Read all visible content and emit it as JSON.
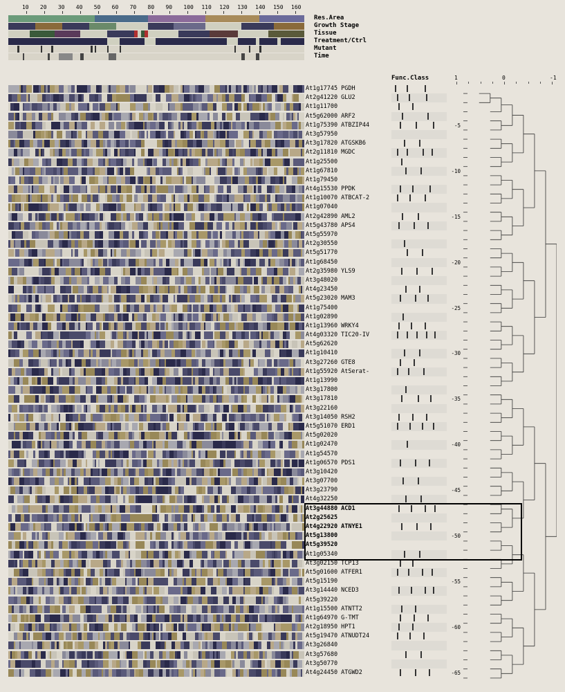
{
  "axis": {
    "ticks": [
      10,
      20,
      30,
      40,
      50,
      60,
      70,
      80,
      90,
      100,
      110,
      120,
      130,
      140,
      150,
      160
    ],
    "max": 165
  },
  "annotation_tracks": [
    {
      "label": "Res.Area",
      "segments": [
        {
          "start": 0,
          "end": 48,
          "color": "#6b9b7a"
        },
        {
          "start": 48,
          "end": 78,
          "color": "#4a6b8a"
        },
        {
          "start": 78,
          "end": 110,
          "color": "#8b6b9a"
        },
        {
          "start": 110,
          "end": 140,
          "color": "#a88b5a"
        },
        {
          "start": 140,
          "end": 165,
          "color": "#6b6b9b"
        }
      ]
    },
    {
      "label": "Growth Stage",
      "segments": [
        {
          "start": 0,
          "end": 15,
          "color": "#3a3a5a"
        },
        {
          "start": 15,
          "end": 30,
          "color": "#8a6a3a"
        },
        {
          "start": 30,
          "end": 45,
          "color": "#3a3a5a"
        },
        {
          "start": 45,
          "end": 60,
          "color": "#6a8a6a"
        },
        {
          "start": 60,
          "end": 78,
          "color": "#d0d0c0"
        },
        {
          "start": 78,
          "end": 92,
          "color": "#3a3a5a"
        },
        {
          "start": 92,
          "end": 110,
          "color": "#6a6a8a"
        },
        {
          "start": 110,
          "end": 130,
          "color": "#d0d0c0"
        },
        {
          "start": 130,
          "end": 148,
          "color": "#3a3a5a"
        },
        {
          "start": 148,
          "end": 165,
          "color": "#8a6a3a"
        }
      ]
    },
    {
      "label": "Tissue",
      "segments": [
        {
          "start": 0,
          "end": 12,
          "color": "#d0d0c0"
        },
        {
          "start": 12,
          "end": 26,
          "color": "#3a5a3a"
        },
        {
          "start": 26,
          "end": 40,
          "color": "#5a3a5a"
        },
        {
          "start": 40,
          "end": 55,
          "color": "#d0d0c0"
        },
        {
          "start": 55,
          "end": 70,
          "color": "#3a3a5a"
        },
        {
          "start": 70,
          "end": 72,
          "color": "#b03030"
        },
        {
          "start": 72,
          "end": 74,
          "color": "#d0d0c0"
        },
        {
          "start": 74,
          "end": 76,
          "color": "#3a5a3a"
        },
        {
          "start": 76,
          "end": 78,
          "color": "#b03030"
        },
        {
          "start": 78,
          "end": 95,
          "color": "#d0d0c0"
        },
        {
          "start": 95,
          "end": 112,
          "color": "#3a3a5a"
        },
        {
          "start": 112,
          "end": 128,
          "color": "#5a3a3a"
        },
        {
          "start": 128,
          "end": 145,
          "color": "#d0d0c0"
        },
        {
          "start": 145,
          "end": 165,
          "color": "#5a5a3a"
        }
      ]
    },
    {
      "label": "Treatment/Ctrl",
      "segments": [
        {
          "start": 0,
          "end": 55,
          "color": "#2a2a4a"
        },
        {
          "start": 55,
          "end": 62,
          "color": "#d0d0c0"
        },
        {
          "start": 62,
          "end": 76,
          "color": "#2a2a4a"
        },
        {
          "start": 76,
          "end": 82,
          "color": "#d0d0c0"
        },
        {
          "start": 82,
          "end": 122,
          "color": "#2a2a4a"
        },
        {
          "start": 122,
          "end": 128,
          "color": "#d0d0c0"
        },
        {
          "start": 128,
          "end": 138,
          "color": "#2a2a4a"
        },
        {
          "start": 138,
          "end": 140,
          "color": "#d0d0c0"
        },
        {
          "start": 140,
          "end": 150,
          "color": "#2a2a4a"
        },
        {
          "start": 150,
          "end": 152,
          "color": "#d0d0c0"
        },
        {
          "start": 152,
          "end": 165,
          "color": "#2a2a4a"
        }
      ]
    },
    {
      "label": "Mutant",
      "segments": [
        {
          "start": 0,
          "end": 165,
          "color": "#d8d4c8"
        },
        {
          "start": 5,
          "end": 6,
          "color": "#333"
        },
        {
          "start": 18,
          "end": 19,
          "color": "#333"
        },
        {
          "start": 24,
          "end": 25,
          "color": "#333"
        },
        {
          "start": 46,
          "end": 47,
          "color": "#333"
        },
        {
          "start": 48,
          "end": 49,
          "color": "#333"
        },
        {
          "start": 55,
          "end": 56,
          "color": "#333"
        },
        {
          "start": 62,
          "end": 63,
          "color": "#333"
        },
        {
          "start": 126,
          "end": 127,
          "color": "#333"
        },
        {
          "start": 134,
          "end": 135,
          "color": "#333"
        },
        {
          "start": 140,
          "end": 141,
          "color": "#333"
        }
      ]
    },
    {
      "label": "Time",
      "segments": [
        {
          "start": 0,
          "end": 165,
          "color": "#d8d4c8"
        },
        {
          "start": 8,
          "end": 9,
          "color": "#444"
        },
        {
          "start": 22,
          "end": 23,
          "color": "#444"
        },
        {
          "start": 28,
          "end": 36,
          "color": "#888"
        },
        {
          "start": 40,
          "end": 42,
          "color": "#444"
        },
        {
          "start": 56,
          "end": 60,
          "color": "#666"
        },
        {
          "start": 130,
          "end": 132,
          "color": "#444"
        },
        {
          "start": 138,
          "end": 140,
          "color": "#444"
        }
      ]
    }
  ],
  "func_class_label": "Func.Class",
  "corr_scale": {
    "ticks": [
      1,
      0,
      -1
    ]
  },
  "genes": [
    {
      "id": "At1g17745",
      "name": "PGDH",
      "func": [
        5,
        22,
        48
      ]
    },
    {
      "id": "At2g41220",
      "name": "GLU2",
      "func": [
        8,
        25,
        50
      ]
    },
    {
      "id": "At1g11700",
      "name": "",
      "func": [
        10,
        30
      ]
    },
    {
      "id": "At5g62000",
      "name": "ARF2",
      "func": [
        15,
        52
      ]
    },
    {
      "id": "At1g75390",
      "name": "ATBZIP44",
      "func": [
        12,
        35,
        60
      ],
      "idx": 5
    },
    {
      "id": "At3g57950",
      "name": "",
      "func": []
    },
    {
      "id": "At3g17820",
      "name": "ATGSKB6",
      "func": [
        18,
        40
      ]
    },
    {
      "id": "At2g11810",
      "name": "MGDC",
      "func": [
        8,
        22,
        45,
        58
      ]
    },
    {
      "id": "At1g25500",
      "name": "",
      "func": [
        14
      ]
    },
    {
      "id": "At1g67810",
      "name": "",
      "func": [
        20,
        42
      ],
      "idx": 10
    },
    {
      "id": "At1g79450",
      "name": "",
      "func": []
    },
    {
      "id": "At4g15530",
      "name": "PPDK",
      "func": [
        12,
        30,
        55
      ]
    },
    {
      "id": "At1g10070",
      "name": "ATBCAT-2",
      "func": [
        8,
        26,
        48
      ]
    },
    {
      "id": "At1g07040",
      "name": "",
      "func": []
    },
    {
      "id": "At2g42890",
      "name": "AML2",
      "func": [
        15,
        38
      ],
      "idx": 15
    },
    {
      "id": "At5g43780",
      "name": "APS4",
      "func": [
        10,
        32,
        52
      ]
    },
    {
      "id": "At5g55970",
      "name": "",
      "func": []
    },
    {
      "id": "At2g30550",
      "name": "",
      "func": [
        18
      ]
    },
    {
      "id": "At5g51770",
      "name": "",
      "func": [
        22,
        44
      ]
    },
    {
      "id": "At1g68450",
      "name": "",
      "func": [],
      "idx": 20
    },
    {
      "id": "At2g35980",
      "name": "YLS9",
      "func": [
        14,
        36,
        58
      ]
    },
    {
      "id": "At3g48020",
      "name": "",
      "func": []
    },
    {
      "id": "At4g23450",
      "name": "",
      "func": [
        20,
        40
      ]
    },
    {
      "id": "At5g23020",
      "name": "MAM3",
      "func": [
        12,
        34,
        52
      ]
    },
    {
      "id": "At1g75400",
      "name": "",
      "func": [],
      "idx": 25
    },
    {
      "id": "At1g02890",
      "name": "",
      "func": [
        16
      ]
    },
    {
      "id": "At1g13960",
      "name": "WRKY4",
      "func": [
        10,
        28,
        48
      ]
    },
    {
      "id": "At4g03320",
      "name": "TIC20-IV",
      "func": [
        8,
        22,
        36,
        50,
        62
      ]
    },
    {
      "id": "At5g62620",
      "name": "",
      "func": []
    },
    {
      "id": "At1g10410",
      "name": "",
      "func": [
        18,
        40
      ],
      "idx": 30
    },
    {
      "id": "At3g27260",
      "name": "GTE8",
      "func": [
        12,
        32
      ]
    },
    {
      "id": "At1g55920",
      "name": "AtSerat-",
      "func": [
        8,
        24,
        46
      ]
    },
    {
      "id": "At1g13990",
      "name": "",
      "func": []
    },
    {
      "id": "At3g17800",
      "name": "",
      "func": [
        20
      ]
    },
    {
      "id": "At3g17810",
      "name": "",
      "func": [
        14,
        38,
        56
      ],
      "idx": 35
    },
    {
      "id": "At3g22160",
      "name": "",
      "func": []
    },
    {
      "id": "At3g14050",
      "name": "RSH2",
      "func": [
        10,
        30,
        50
      ]
    },
    {
      "id": "At5g51070",
      "name": "ERD1",
      "func": [
        8,
        26,
        44,
        60
      ]
    },
    {
      "id": "At5g02020",
      "name": "",
      "func": []
    },
    {
      "id": "At1g02470",
      "name": "",
      "func": [
        22
      ],
      "idx": 40
    },
    {
      "id": "At1g54570",
      "name": "",
      "func": []
    },
    {
      "id": "At1g06570",
      "name": "PDS1",
      "func": [
        12,
        34,
        54
      ]
    },
    {
      "id": "At3g10420",
      "name": "",
      "func": []
    },
    {
      "id": "At3g07700",
      "name": "",
      "func": [
        16,
        38
      ]
    },
    {
      "id": "At3g23790",
      "name": "",
      "func": [],
      "idx": 45
    },
    {
      "id": "At4g32250",
      "name": "",
      "func": [
        20,
        42
      ]
    },
    {
      "id": "At3g44880",
      "name": "ACD1",
      "func": [
        10,
        28,
        48,
        62
      ],
      "bold": true
    },
    {
      "id": "At2g25625",
      "name": "",
      "func": [],
      "bold": true
    },
    {
      "id": "At4g22920",
      "name": "ATNYE1",
      "func": [
        14,
        36,
        56
      ],
      "bold": true
    },
    {
      "id": "At5g13800",
      "name": "",
      "func": [],
      "bold": true,
      "idx": 50
    },
    {
      "id": "At5g39520",
      "name": "",
      "func": [],
      "bold": true
    },
    {
      "id": "At1g05340",
      "name": "",
      "func": [
        18,
        40
      ]
    },
    {
      "id": "At3g02150",
      "name": "TCP13",
      "func": [
        12,
        30
      ]
    },
    {
      "id": "At5g01600",
      "name": "ATFER1",
      "func": [
        8,
        24,
        44,
        58
      ]
    },
    {
      "id": "At5g15190",
      "name": "",
      "func": [],
      "idx": 55
    },
    {
      "id": "At3g14440",
      "name": "NCED3",
      "func": [
        10,
        28,
        48,
        60
      ]
    },
    {
      "id": "At5g39220",
      "name": "",
      "func": []
    },
    {
      "id": "At1g15500",
      "name": "ATNTT2",
      "func": [
        14,
        34
      ]
    },
    {
      "id": "At1g64970",
      "name": "G-TMT",
      "func": [
        12,
        32,
        52
      ]
    },
    {
      "id": "At2g18950",
      "name": "HPT1",
      "func": [
        10,
        30
      ],
      "idx": 60
    },
    {
      "id": "At5g19470",
      "name": "ATNUDT24",
      "func": [
        8,
        26,
        46
      ]
    },
    {
      "id": "At3g26840",
      "name": "",
      "func": []
    },
    {
      "id": "At3g57680",
      "name": "",
      "func": [
        20,
        42
      ]
    },
    {
      "id": "At3g50770",
      "name": "",
      "func": []
    },
    {
      "id": "At4g24450",
      "name": "ATGWD2",
      "func": [
        12,
        34,
        54
      ],
      "idx": 65
    }
  ],
  "heatmap_palette": [
    "#2a2a4a",
    "#3a3a5a",
    "#4a4a6a",
    "#5a5a7a",
    "#6a6a8a",
    "#8a8a9a",
    "#a8a8b0",
    "#c8c4b8",
    "#d8d4c8",
    "#b8a888",
    "#a89868",
    "#988858"
  ],
  "n_samples": 165,
  "highlight": {
    "rowStart": 46,
    "rowEnd": 51
  }
}
